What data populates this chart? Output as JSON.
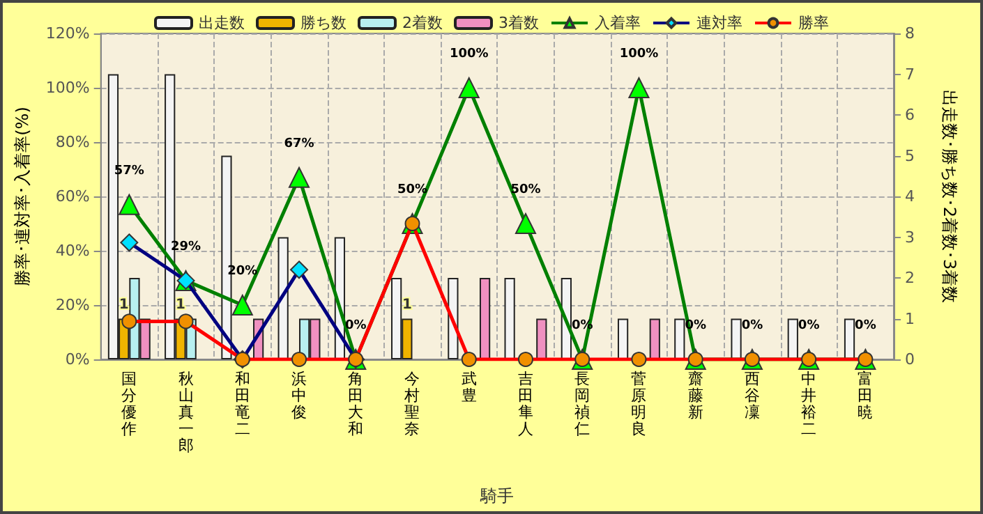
{
  "chart_data": {
    "type": "bar",
    "xlabel": "騎手",
    "ylabel": "勝率･連対率･入着率(%)",
    "y2label": "出走数･勝ち数･2着数･3着数",
    "categories": [
      "国分優作",
      "秋山真一郎",
      "和田竜二",
      "浜中俊",
      "角田大和",
      "今村聖奈",
      "武豊",
      "吉田隼人",
      "長岡禎仁",
      "菅原明良",
      "齋藤新",
      "西谷凜",
      "中井裕二",
      "富田暁"
    ],
    "series": [
      {
        "name": "出走数",
        "axis": "y2",
        "color": "#f4f4f4",
        "values": [
          7,
          7,
          5,
          3,
          3,
          2,
          2,
          2,
          2,
          1,
          1,
          1,
          1,
          1
        ]
      },
      {
        "name": "勝ち数",
        "axis": "y2",
        "color": "#f0b400",
        "values": [
          1,
          1,
          0,
          0,
          0,
          1,
          0,
          0,
          0,
          0,
          0,
          0,
          0,
          0
        ],
        "value_labels": [
          "1",
          "1",
          null,
          null,
          null,
          "1",
          null,
          null,
          null,
          null,
          null,
          null,
          null,
          null
        ]
      },
      {
        "name": "2着数",
        "axis": "y2",
        "color": "#b8f0f0",
        "values": [
          2,
          1,
          0,
          1,
          0,
          0,
          0,
          0,
          0,
          0,
          0,
          0,
          0,
          0
        ]
      },
      {
        "name": "3着数",
        "axis": "y2",
        "color": "#f090c0",
        "values": [
          1,
          0,
          1,
          1,
          0,
          0,
          2,
          1,
          0,
          1,
          0,
          0,
          0,
          0
        ]
      },
      {
        "name": "入着率",
        "type": "line",
        "color": "#008000",
        "marker": "triangle",
        "values": [
          57,
          29,
          20,
          67,
          0,
          50,
          100,
          50,
          0,
          100,
          0,
          0,
          0,
          0
        ],
        "value_labels": [
          "57%",
          "29%",
          "20%",
          "67%",
          "0%",
          "50%",
          "100%",
          "50%",
          "0%",
          "100%",
          "0%",
          "0%",
          "0%",
          "0%"
        ]
      },
      {
        "name": "連対率",
        "type": "line",
        "color": "#000080",
        "marker": "diamond",
        "values": [
          43,
          29,
          0,
          33,
          0,
          null,
          null,
          null,
          null,
          null,
          null,
          null,
          null,
          null
        ]
      },
      {
        "name": "勝率",
        "type": "line",
        "color": "#ff0000",
        "marker": "circle",
        "values": [
          14,
          14,
          0,
          0,
          0,
          50,
          0,
          0,
          0,
          0,
          0,
          0,
          0,
          0
        ]
      }
    ],
    "ylim": [
      0,
      120
    ],
    "yticks": [
      {
        "value": 0,
        "label": "0%"
      },
      {
        "value": 20,
        "label": "20%"
      },
      {
        "value": 40,
        "label": "40%"
      },
      {
        "value": 60,
        "label": "60%"
      },
      {
        "value": 80,
        "label": "80%"
      },
      {
        "value": 100,
        "label": "100%"
      },
      {
        "value": 120,
        "label": "120%"
      }
    ],
    "y2lim": [
      0,
      8
    ],
    "y2ticks": [
      0,
      1,
      2,
      3,
      4,
      5,
      6,
      7,
      8
    ],
    "grid": true,
    "legend": "top"
  }
}
